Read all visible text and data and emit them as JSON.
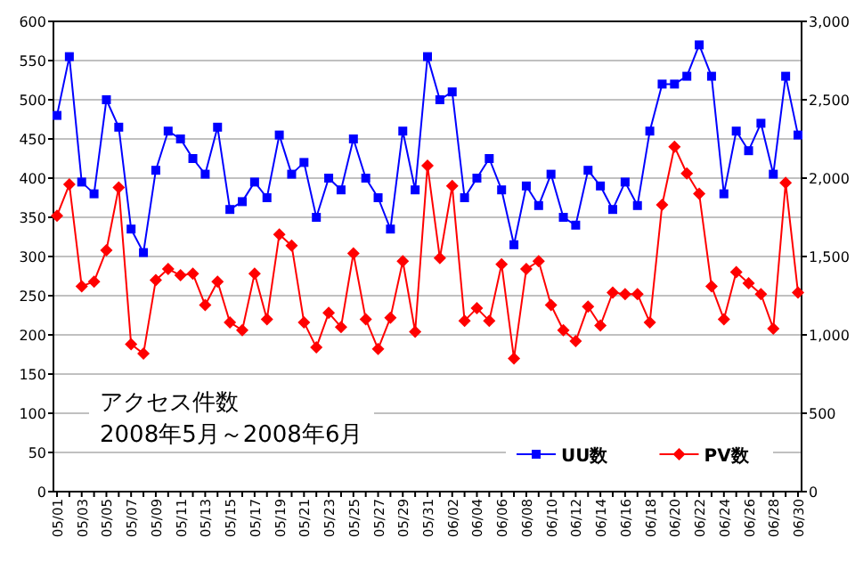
{
  "chart_data": {
    "type": "line",
    "title": "アクセス件数",
    "subtitle": "2008年5月～2008年6月",
    "categories": [
      "05/01",
      null,
      "05/03",
      null,
      "05/05",
      null,
      "05/07",
      null,
      "05/09",
      null,
      "05/11",
      null,
      "05/13",
      null,
      "05/15",
      null,
      "05/17",
      null,
      "05/19",
      null,
      "05/21",
      null,
      "05/23",
      null,
      "05/25",
      null,
      "05/27",
      null,
      "05/29",
      null,
      "05/31",
      null,
      "06/02",
      null,
      "06/04",
      null,
      "06/06",
      null,
      "06/08",
      null,
      "06/10",
      null,
      "06/12",
      null,
      "06/14",
      null,
      "06/16",
      null,
      "06/18",
      null,
      "06/20",
      null,
      "06/22",
      null,
      "06/24",
      null,
      "06/26",
      null,
      "06/28",
      null,
      "06/30"
    ],
    "series": [
      {
        "name": "UU数",
        "color": "#0000ff",
        "marker": "square",
        "values": [
          480,
          555,
          395,
          380,
          500,
          465,
          335,
          305,
          410,
          460,
          450,
          425,
          405,
          465,
          360,
          370,
          395,
          375,
          455,
          405,
          420,
          350,
          400,
          385,
          450,
          400,
          375,
          335,
          460,
          385,
          555,
          500,
          510,
          375,
          400,
          425,
          385,
          315,
          390,
          365,
          405,
          350,
          340,
          410,
          390,
          360,
          395,
          365,
          460,
          520,
          520,
          530,
          570,
          530,
          380,
          460,
          435,
          470,
          405,
          530,
          455
        ]
      },
      {
        "name": "PV数",
        "color": "#ff0000",
        "marker": "diamond",
        "axis": "y2",
        "values": [
          1760,
          1960,
          1310,
          1340,
          1540,
          1940,
          940,
          880,
          1350,
          1420,
          1380,
          1390,
          1190,
          1340,
          1080,
          1030,
          1390,
          1100,
          1640,
          1570,
          1080,
          920,
          1140,
          1050,
          1520,
          1100,
          910,
          1110,
          1470,
          1020,
          2080,
          1490,
          1950,
          1090,
          1170,
          1090,
          1450,
          850,
          1420,
          1470,
          1190,
          1030,
          960,
          1180,
          1060,
          1270,
          1260,
          1260,
          1080,
          1830,
          2200,
          2030,
          1900,
          1310,
          1100,
          1400,
          1330,
          1260,
          1040,
          1970,
          1270
        ]
      }
    ],
    "ylim": [
      0,
      600
    ],
    "yticks": [
      0,
      50,
      100,
      150,
      200,
      250,
      300,
      350,
      400,
      450,
      500,
      550,
      600
    ],
    "y2lim": [
      0,
      3000
    ],
    "y2ticks": [
      {
        "value": 0,
        "label": "0"
      },
      {
        "value": 500,
        "label": "500"
      },
      {
        "value": 1000,
        "label": "1,000"
      },
      {
        "value": 1500,
        "label": "1,500"
      },
      {
        "value": 2000,
        "label": "2,000"
      },
      {
        "value": 2500,
        "label": "2,500"
      },
      {
        "value": 3000,
        "label": "3,000"
      }
    ],
    "grid": "y",
    "legend": "bottom right",
    "line_style": "solid"
  }
}
